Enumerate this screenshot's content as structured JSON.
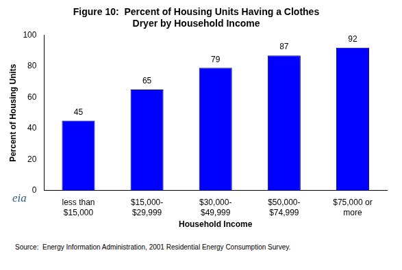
{
  "chart_data": {
    "type": "bar",
    "title": [
      "Figure 10:  Percent of Housing Units Having a Clothes",
      "Dryer by Household Income"
    ],
    "x_label": "Household Income",
    "y_label": "Percent of Housing Units",
    "categories": [
      "less than $15,000",
      "$15,000-$29,999",
      "$30,000-$49,999",
      "$50,000-$74,999",
      "$75,000 or more"
    ],
    "values": [
      45,
      65,
      79,
      87,
      92
    ],
    "color": "#0000ff",
    "ylim": [
      0,
      100
    ],
    "yticks": [
      0,
      20,
      40,
      60,
      80,
      100
    ],
    "grid": false,
    "data_labels": true,
    "logo": "eia",
    "source": "Source:  Energy Information Administration, 2001 Residential Energy Consumption Survey."
  }
}
